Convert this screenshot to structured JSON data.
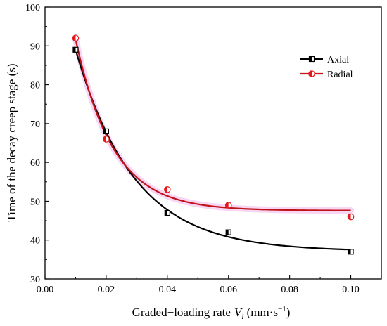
{
  "chart_data": {
    "type": "scatter",
    "xlabel": "Graded−loading rate",
    "xlabel_symbol": "V",
    "xlabel_symbol_subscript": "l",
    "xlabel_unit_prefix": " (mm·s",
    "xlabel_unit_exponent": "−1",
    "xlabel_unit_suffix": ")",
    "ylabel": "Time of the decay creep stage (s)",
    "xlim": [
      0.0,
      0.11
    ],
    "ylim": [
      30,
      100
    ],
    "x_ticks": [
      "0.00",
      "0.02",
      "0.04",
      "0.06",
      "0.08",
      "0.10"
    ],
    "y_ticks": [
      "30",
      "40",
      "50",
      "60",
      "70",
      "80",
      "90",
      "100"
    ],
    "grid": false,
    "legend_position": "top-right",
    "series": [
      {
        "name": "Axial",
        "color": "#000000",
        "marker": "half-filled-square",
        "x": [
          0.01,
          0.02,
          0.04,
          0.06,
          0.1
        ],
        "y": [
          89,
          68,
          47,
          42,
          37
        ],
        "fit_curve": "exponential decay"
      },
      {
        "name": "Radial",
        "color": "#e8161b",
        "fit_color": "#c0141a",
        "band_color": "#f6c7ee",
        "marker": "half-filled-circle",
        "x": [
          0.01,
          0.02,
          0.04,
          0.06,
          0.1
        ],
        "y": [
          92,
          66,
          53,
          49,
          46
        ],
        "fit_curve": "exponential decay"
      }
    ]
  }
}
